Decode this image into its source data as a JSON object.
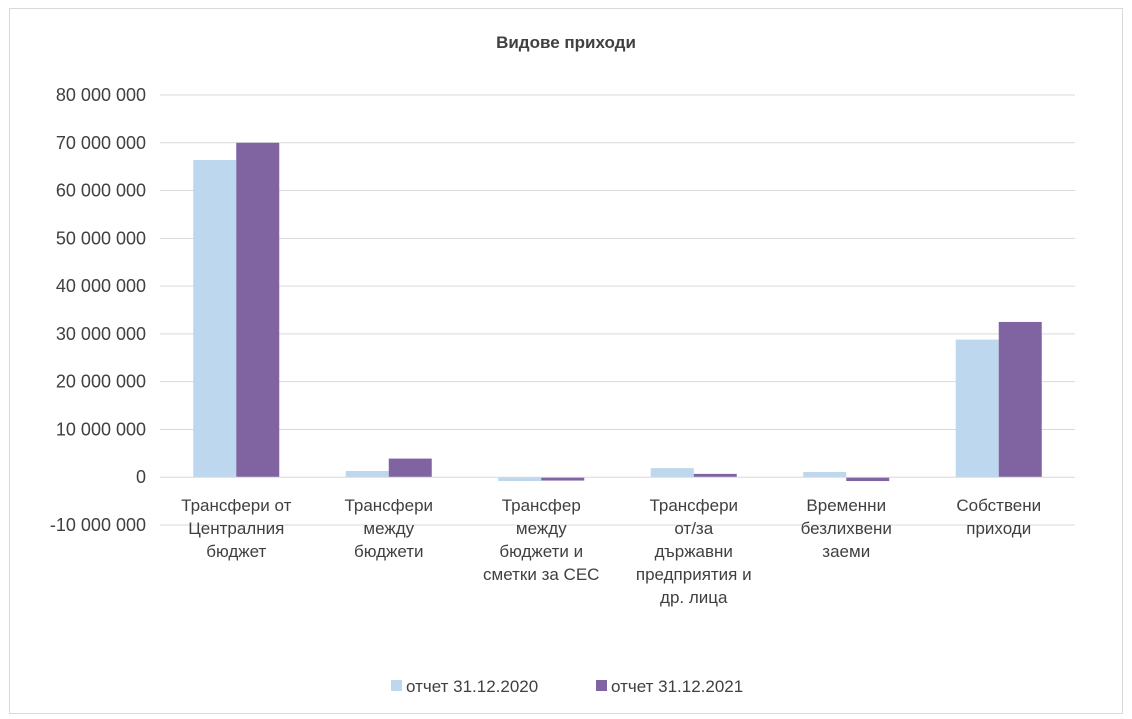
{
  "chart_data": {
    "type": "bar",
    "title": "Видове приходи",
    "xlabel": "",
    "ylabel": "",
    "ylim": [
      -10000000,
      80000000
    ],
    "yticks": [
      {
        "value": 80000000,
        "label": "80 000 000"
      },
      {
        "value": 70000000,
        "label": "70 000 000"
      },
      {
        "value": 60000000,
        "label": "60 000 000"
      },
      {
        "value": 50000000,
        "label": "50 000 000"
      },
      {
        "value": 40000000,
        "label": "40 000 000"
      },
      {
        "value": 30000000,
        "label": "30 000 000"
      },
      {
        "value": 20000000,
        "label": "20 000 000"
      },
      {
        "value": 10000000,
        "label": "10 000 000"
      },
      {
        "value": 0,
        "label": "0"
      },
      {
        "value": -10000000,
        "label": "-10 000 000"
      }
    ],
    "grid": true,
    "legend_position": "bottom",
    "categories": [
      [
        "Трансфери от",
        "Централния",
        "бюджет"
      ],
      [
        "Трансфери",
        "между",
        "бюджети"
      ],
      [
        "Трансфер",
        "между",
        "бюджети и",
        "сметки за СЕС"
      ],
      [
        "Трансфери",
        "от/за",
        "държавни",
        "предприятия и",
        "др. лица"
      ],
      [
        "Временни",
        "безлихвени",
        "заеми"
      ],
      [
        "Собствени",
        "приходи"
      ]
    ],
    "series": [
      {
        "name": "отчет 31.12.2020",
        "color": "#bdd7ee",
        "values": [
          66400000,
          1300000,
          -800000,
          1900000,
          1100000,
          28800000
        ]
      },
      {
        "name": "отчет 31.12.2021",
        "color": "#8064a2",
        "values": [
          70000000,
          3900000,
          -700000,
          700000,
          -800000,
          32500000
        ]
      }
    ]
  }
}
